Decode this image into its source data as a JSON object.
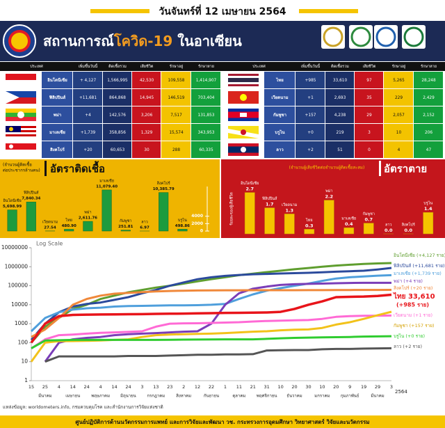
{
  "header": {
    "date": "วันจันทร์ที่ 12 เมษายน 2564",
    "title_part1": "สถานการณ์",
    "title_highlight": "โควิด-19",
    "title_part2": " ในอาเซียน"
  },
  "table": {
    "columns": [
      "ประเทศ",
      "เพิ่มขึ้นวันนี้",
      "ติดเชื้อรวม",
      "เสียชีวิต",
      "รักษาอยู่",
      "รักษาหาย"
    ],
    "left_rows": [
      [
        "อินโดนีเซีย",
        "+ 4,127",
        "1,566,995",
        "42,530",
        "109,558",
        "1,414,907"
      ],
      [
        "ฟิลิปปินส์",
        "+11,681",
        "864,868",
        "14,945",
        "146,519",
        "703,404"
      ],
      [
        "พม่า",
        "+4",
        "142,576",
        "3,206",
        "7,517",
        "131,853"
      ],
      [
        "มาเลเซีย",
        "+1,739",
        "358,856",
        "1,329",
        "15,574",
        "343,953"
      ],
      [
        "สิงคโปร์",
        "+20",
        "60,653",
        "30",
        "288",
        "60,335"
      ]
    ],
    "right_rows": [
      [
        "ไทย",
        "+985",
        "33,610",
        "97",
        "5,265",
        "28,248"
      ],
      [
        "เวียดนาม",
        "+1",
        "2,693",
        "35",
        "229",
        "2,429"
      ],
      [
        "กัมพูชา",
        "+157",
        "4,238",
        "29",
        "2,057",
        "2,152"
      ],
      [
        "บรูไน",
        "+0",
        "219",
        "3",
        "10",
        "206"
      ],
      [
        "ลาว",
        "+2",
        "51",
        "0",
        "4",
        "47"
      ]
    ]
  },
  "chart_data": [
    {
      "type": "bar",
      "title": "อัตราติดเชื้อ",
      "subtitle_lines": [
        "(จำนวนผู้ติดเชื้อ",
        "ต่อประชากรล้านคน)"
      ],
      "categories": [
        "อินโดนีเซีย",
        "ฟิลิปปินส์",
        "เวียดนาม",
        "ไทย",
        "พม่า",
        "มาเลเซีย",
        "กัมพูชา",
        "ลาว",
        "สิงคโปร์",
        "บรูไน"
      ],
      "values": [
        5698.99,
        7840.34,
        27.54,
        480.9,
        2611.76,
        11079.4,
        251.81,
        6.97,
        10385.79,
        498.86
      ],
      "value_labels": [
        "5,698.99",
        "7,840.34",
        "27.54",
        "480.90",
        "2,611.76",
        "11,079.40",
        "251.81",
        "6.97",
        "10,385.79",
        "498.86"
      ],
      "color": "#1d9b3e",
      "ylim": [
        0,
        12000
      ],
      "yticks": [
        0,
        2000,
        4000
      ]
    },
    {
      "type": "bar",
      "title": "อัตราตาย",
      "subtitle": "(จำนวนผู้เสียชีวิตต่อจำนวนผู้ติดเชื้อสะสม)",
      "ylabel": "ร้อยละของผู้เสียชีวิต",
      "categories": [
        "อินโดนีเซีย",
        "ฟิลิปปินส์",
        "เวียดนาม",
        "ไทย",
        "พม่า",
        "มาเลเซีย",
        "กัมพูชา",
        "ลาว",
        "สิงคโปร์",
        "บรูไน"
      ],
      "values": [
        2.7,
        1.7,
        1.3,
        0.3,
        2.2,
        0.4,
        0.7,
        0,
        0,
        1.4
      ],
      "value_labels": [
        "2.7",
        "1.7",
        "1.3",
        "0.3",
        "2.2",
        "0.4",
        "0.7",
        "0.0",
        "0.0",
        "1.4"
      ],
      "color": "#f5c400",
      "ylim": [
        0,
        3
      ]
    },
    {
      "type": "line",
      "title": "Log Scale",
      "log_y": true,
      "categories": [
        "15",
        "25",
        "4",
        "14",
        "24",
        "4",
        "14",
        "24",
        "3",
        "13",
        "23",
        "2",
        "12",
        "22",
        "1",
        "11",
        "21",
        "31",
        "10",
        "20",
        "30",
        "10",
        "20",
        "9",
        "19",
        "29",
        "3"
      ],
      "month_labels": [
        "มีนาคม",
        "เมษายน",
        "พฤษภาคม",
        "มิถุนายน",
        "กรกฎาคม",
        "สิงหาคม",
        "กันยายน",
        "ตุลาคม",
        "พฤศจิกายน",
        "ธันวาคม",
        "มกราคม",
        "กุมภาพันธ์",
        "มีนาคม"
      ],
      "year_label": "2564",
      "ylim": [
        1,
        10000000
      ],
      "yticks": [
        1,
        10,
        100,
        1000,
        10000,
        100000,
        1000000,
        10000000
      ],
      "series": [
        {
          "name": "อินโดนีเซีย (+4,127 ราย)",
          "color": "#5f9e2f",
          "values": [
            100,
            700,
            2000,
            6000,
            10000,
            20000,
            30000,
            45000,
            60000,
            80000,
            100000,
            130000,
            170000,
            220000,
            280000,
            360000,
            430000,
            520000,
            620000,
            740000,
            860000,
            1000000,
            1150000,
            1280000,
            1400000,
            1500000,
            1566995
          ]
        },
        {
          "name": "ฟิลิปปินส์ (+11,681 ราย)",
          "color": "#2b4a9c",
          "values": [
            140,
            1000,
            4000,
            8000,
            11000,
            13000,
            18000,
            25000,
            40000,
            60000,
            100000,
            150000,
            220000,
            280000,
            330000,
            370000,
            400000,
            420000,
            440000,
            460000,
            480000,
            510000,
            550000,
            580000,
            620000,
            720000,
            864868
          ]
        },
        {
          "name": "มาเลเซีย (+1,739 ราย)",
          "color": "#4f9fdc",
          "values": [
            400,
            2000,
            4000,
            5500,
            6500,
            7000,
            8000,
            8500,
            8700,
            9000,
            9200,
            9300,
            9500,
            10000,
            11000,
            20000,
            35000,
            55000,
            75000,
            100000,
            130000,
            180000,
            240000,
            280000,
            310000,
            340000,
            358856
          ]
        },
        {
          "name": "พม่า (+4 ราย)",
          "color": "#7a3db8",
          "values": [
            null,
            10,
            100,
            150,
            180,
            200,
            250,
            280,
            300,
            320,
            350,
            380,
            400,
            1000,
            10000,
            40000,
            70000,
            90000,
            110000,
            120000,
            125000,
            130000,
            135000,
            140000,
            142000,
            142500,
            142576
          ]
        },
        {
          "name": "สิงคโปร์ (+20 ราย)",
          "color": "#f0883a",
          "values": [
            200,
            500,
            2000,
            10000,
            20000,
            30000,
            38000,
            42000,
            46000,
            50000,
            53000,
            55000,
            56000,
            57000,
            57500,
            57800,
            58000,
            58100,
            58200,
            58300,
            58500,
            58800,
            59000,
            59500,
            60000,
            60300,
            60653
          ]
        },
        {
          "name": "ไทย 33,610",
          "note": "(+985 ราย)",
          "color": "#e8141a",
          "values": [
            100,
            1000,
            2500,
            2900,
            3000,
            3050,
            3100,
            3150,
            3200,
            3300,
            3350,
            3400,
            3500,
            3600,
            3700,
            3750,
            3800,
            3900,
            4200,
            6000,
            10000,
            15000,
            25000,
            26000,
            27000,
            29000,
            33610
          ]
        },
        {
          "name": "เวียดนาม (+1 ราย)",
          "color": "#ff6ad5",
          "values": [
            50,
            150,
            250,
            270,
            300,
            330,
            350,
            370,
            400,
            700,
            1000,
            1050,
            1060,
            1100,
            1150,
            1200,
            1300,
            1400,
            1450,
            1500,
            1550,
            1800,
            2300,
            2500,
            2600,
            2650,
            2693
          ]
        },
        {
          "name": "กัมพูชา (+157 ราย)",
          "color": "#f2c21a",
          "values": [
            10,
            100,
            120,
            122,
            125,
            130,
            140,
            150,
            200,
            250,
            270,
            280,
            290,
            300,
            320,
            350,
            380,
            400,
            450,
            480,
            500,
            600,
            900,
            1200,
            1800,
            2800,
            4238
          ]
        },
        {
          "name": "บรูไน (+0 ราย)",
          "color": "#2fcc2f",
          "values": [
            50,
            130,
            135,
            140,
            141,
            141,
            141,
            141,
            141,
            141,
            142,
            145,
            146,
            148,
            150,
            150,
            150,
            160,
            170,
            180,
            185,
            190,
            195,
            200,
            210,
            215,
            219
          ]
        },
        {
          "name": "ลาว (+2 ราย)",
          "color": "#555555",
          "values": [
            null,
            10,
            19,
            19,
            19,
            19,
            19,
            20,
            20,
            20,
            21,
            22,
            23,
            23,
            24,
            24,
            25,
            39,
            40,
            41,
            41,
            45,
            47,
            47,
            49,
            50,
            51
          ]
        }
      ]
    }
  ],
  "footer": {
    "source": "แหล่งข้อมูล: worldometers.info, กรมควบคุมโรค และสำนักงานการวิจัยแห่งชาติ",
    "credit": "ศูนย์ปฏิบัติการด้านนวัตกรรมการแพทย์ และการวิจัยและพัฒนา วช.  กระทรวงการอุดมศึกษา วิทยาศาสตร์ วิจัยและนวัตกรรม"
  }
}
